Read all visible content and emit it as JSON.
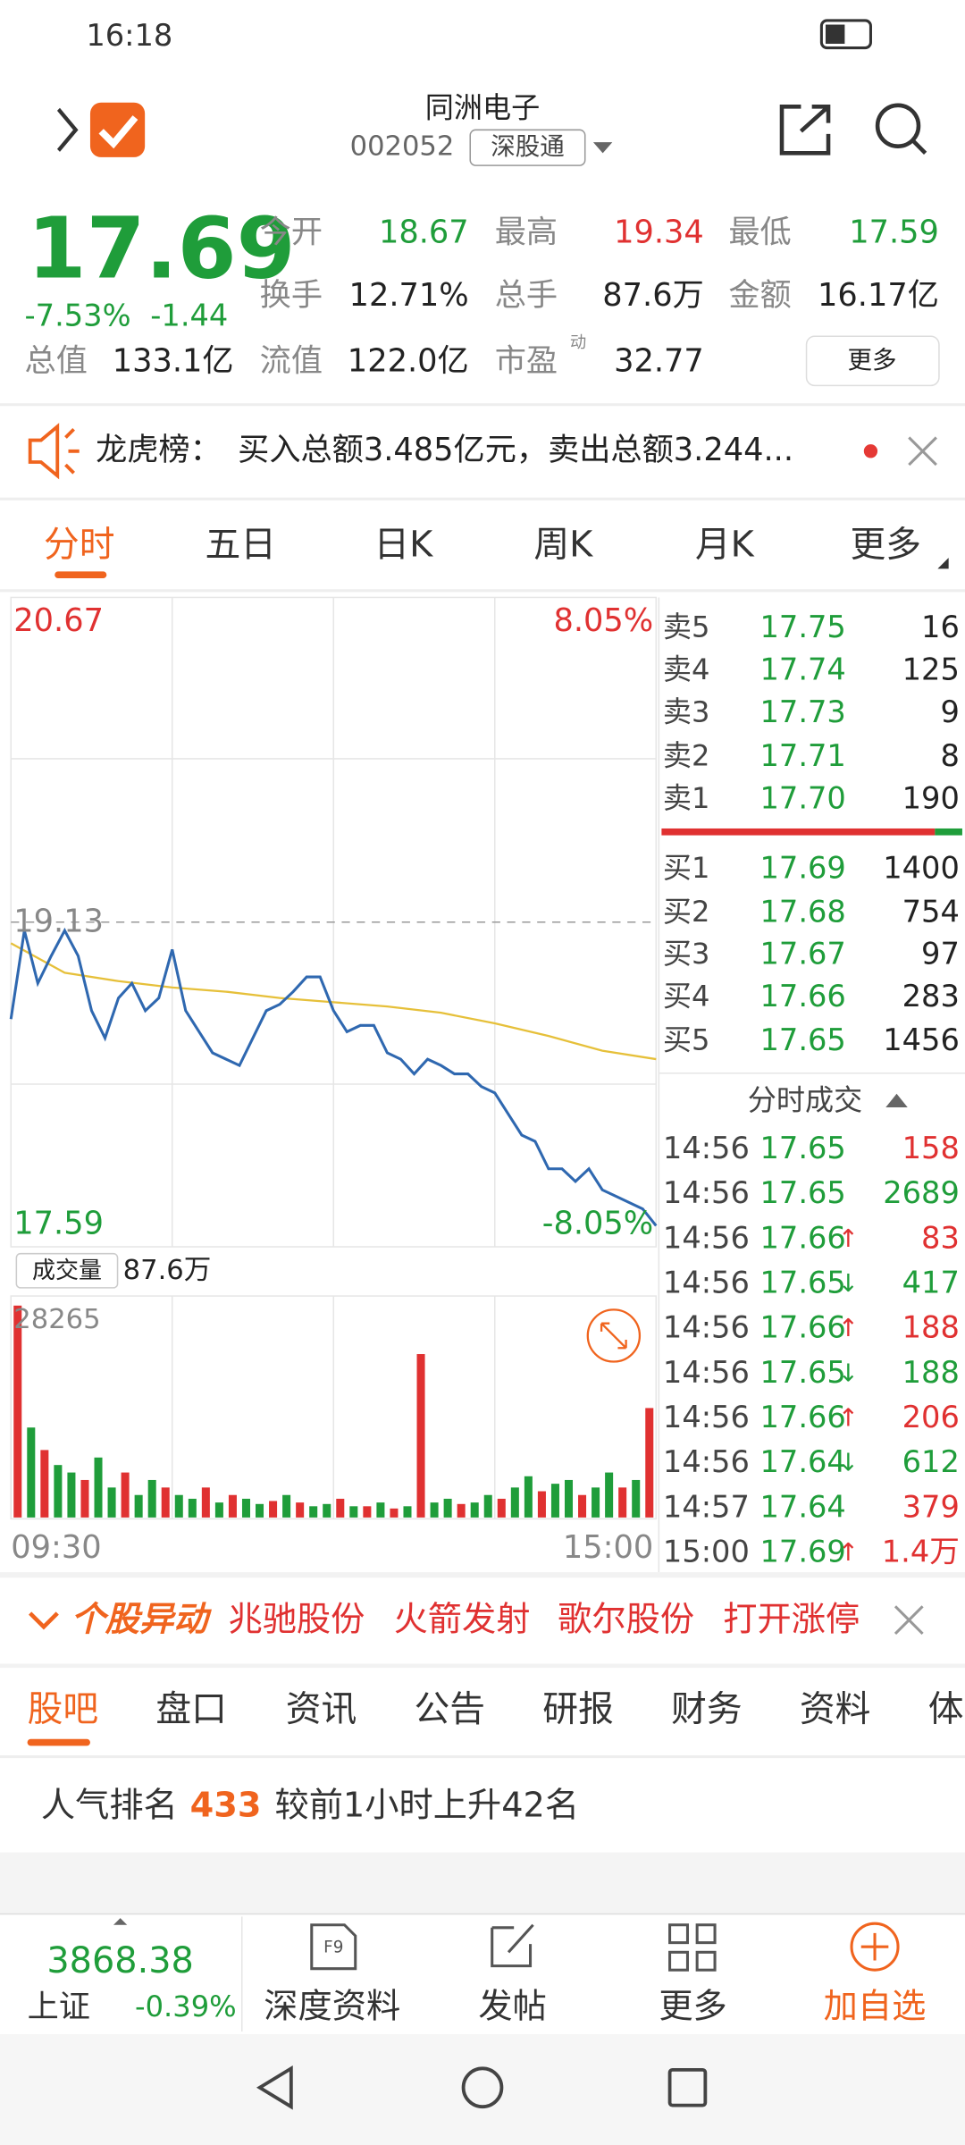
{
  "status_bar": {
    "time": "16:18"
  },
  "header": {
    "name": "同洲电子",
    "code": "002052",
    "tag": "深股通"
  },
  "quote": {
    "price": "17.69",
    "change_pct": "-7.53%",
    "change": "-1.44",
    "stats": [
      {
        "label": "今开",
        "value": "18.67"
      },
      {
        "label": "最高",
        "value": "19.34"
      },
      {
        "label": "最低",
        "value": "17.59"
      },
      {
        "label": "换手",
        "value": "12.71%"
      },
      {
        "label": "总手",
        "value": "87.6万"
      },
      {
        "label": "金额",
        "value": "16.17亿"
      },
      {
        "label": "总值",
        "value": "133.1亿"
      },
      {
        "label": "流值",
        "value": "122.0亿"
      },
      {
        "label": "市盈",
        "value": "32.77"
      }
    ],
    "pe_note": "动",
    "more": "更多"
  },
  "notice": {
    "label": "龙虎榜：",
    "text": "买入总额3.485亿元，卖出总额3.244..."
  },
  "chart_tabs": [
    "分时",
    "五日",
    "日K",
    "周K",
    "月K",
    "更多"
  ],
  "intraday": {
    "ylim": [
      17.59,
      20.67
    ],
    "reference": 19.13,
    "pct_high": "8.05%",
    "pct_low": "-8.05%",
    "price_color": "#2f68b0",
    "avg_color": "#e6c03a",
    "price": [
      18.67,
      19.09,
      18.84,
      18.97,
      19.09,
      18.97,
      18.71,
      18.58,
      18.77,
      18.84,
      18.71,
      18.77,
      19.0,
      18.71,
      18.61,
      18.51,
      18.48,
      18.45,
      18.58,
      18.71,
      18.74,
      18.8,
      18.87,
      18.87,
      18.71,
      18.61,
      18.64,
      18.64,
      18.51,
      18.48,
      18.41,
      18.48,
      18.45,
      18.41,
      18.41,
      18.35,
      18.32,
      18.22,
      18.12,
      18.09,
      17.96,
      17.96,
      17.9,
      17.96,
      17.86,
      17.83,
      17.8,
      17.77,
      17.69
    ],
    "avg": [
      19.03,
      18.89,
      18.85,
      18.82,
      18.8,
      18.77,
      18.75,
      18.73,
      18.7,
      18.65,
      18.59,
      18.52,
      18.48
    ],
    "volume_label": "成交量",
    "volume_total": "87.6万",
    "volume_ylim": [
      0,
      28265
    ],
    "volumes": [
      28265,
      12000,
      9000,
      7000,
      6000,
      5000,
      8000,
      4000,
      6000,
      3000,
      5000,
      4000,
      3000,
      2500,
      4000,
      2000,
      3000,
      2500,
      1800,
      2200,
      3000,
      2000,
      1500,
      1800,
      2500,
      1500,
      1500,
      2000,
      1200,
      1500,
      21800,
      2000,
      2500,
      1800,
      2000,
      3000,
      2500,
      4000,
      5500,
      3500,
      4500,
      5000,
      3000,
      4000,
      6000,
      4000,
      5000,
      14600
    ],
    "volume_colors": [
      "#e03131",
      "#1f9d3a",
      "#e03131",
      "#1f9d3a",
      "#1f9d3a",
      "#e03131",
      "#1f9d3a",
      "#1f9d3a",
      "#e03131",
      "#1f9d3a",
      "#1f9d3a",
      "#e03131",
      "#1f9d3a",
      "#1f9d3a",
      "#e03131",
      "#1f9d3a",
      "#e03131",
      "#1f9d3a",
      "#1f9d3a",
      "#e03131",
      "#1f9d3a",
      "#e03131",
      "#1f9d3a",
      "#1f9d3a",
      "#e03131",
      "#1f9d3a",
      "#e03131",
      "#1f9d3a",
      "#e03131",
      "#1f9d3a",
      "#e03131",
      "#1f9d3a",
      "#1f9d3a",
      "#e03131",
      "#1f9d3a",
      "#1f9d3a",
      "#e03131",
      "#1f9d3a",
      "#1f9d3a",
      "#e03131",
      "#1f9d3a",
      "#1f9d3a",
      "#e03131",
      "#1f9d3a",
      "#1f9d3a",
      "#e03131",
      "#1f9d3a",
      "#e03131"
    ],
    "time_start": "09:30",
    "time_end": "15:00"
  },
  "order_book": {
    "asks": [
      {
        "label": "卖5",
        "price": "17.75",
        "volume": "16"
      },
      {
        "label": "卖4",
        "price": "17.74",
        "volume": "125"
      },
      {
        "label": "卖3",
        "price": "17.73",
        "volume": "9"
      },
      {
        "label": "卖2",
        "price": "17.71",
        "volume": "8"
      },
      {
        "label": "卖1",
        "price": "17.70",
        "volume": "190"
      }
    ],
    "bids": [
      {
        "label": "买1",
        "price": "17.69",
        "volume": "1400"
      },
      {
        "label": "买2",
        "price": "17.68",
        "volume": "754"
      },
      {
        "label": "买3",
        "price": "17.67",
        "volume": "97"
      },
      {
        "label": "买4",
        "price": "17.66",
        "volume": "283"
      },
      {
        "label": "买5",
        "price": "17.65",
        "volume": "1456"
      }
    ]
  },
  "trades": {
    "title": "分时成交",
    "rows": [
      {
        "time": "14:56",
        "price": "17.65",
        "volume": "158",
        "color": "#e03131"
      },
      {
        "time": "14:56",
        "price": "17.65",
        "volume": "2689",
        "color": "#1f9d3a"
      },
      {
        "time": "14:56",
        "price": "17.66",
        "arrow": "↑",
        "volume": "83",
        "color": "#e03131"
      },
      {
        "time": "14:56",
        "price": "17.65",
        "arrow": "↓",
        "volume": "417",
        "color": "#1f9d3a"
      },
      {
        "time": "14:56",
        "price": "17.66",
        "arrow": "↑",
        "volume": "188",
        "color": "#e03131"
      },
      {
        "time": "14:56",
        "price": "17.65",
        "arrow": "↓",
        "volume": "188",
        "color": "#1f9d3a"
      },
      {
        "time": "14:56",
        "price": "17.66",
        "arrow": "↑",
        "volume": "206",
        "color": "#e03131"
      },
      {
        "time": "14:56",
        "price": "17.64",
        "arrow": "↓",
        "volume": "612",
        "color": "#1f9d3a"
      },
      {
        "time": "14:57",
        "price": "17.64",
        "volume": "379",
        "color": "#e03131"
      },
      {
        "time": "15:00",
        "price": "17.69",
        "arrow": "↑",
        "volume": "1.4万",
        "color": "#e03131"
      }
    ]
  },
  "alert": {
    "title": "个股异动",
    "items": [
      "兆驰股份",
      "火箭发射",
      "歌尔股份",
      "打开涨停"
    ]
  },
  "forum_tabs": [
    "股吧",
    "盘口",
    "资讯",
    "公告",
    "研报",
    "财务",
    "资料",
    "体"
  ],
  "popularity": {
    "label": "人气排名",
    "rank": "433",
    "change": "较前1小时上升42名"
  },
  "index": {
    "value": "3868.38",
    "name": "上证",
    "change": "-0.39%"
  },
  "toolbar": [
    "深度资料",
    "发帖",
    "更多",
    "加自选"
  ]
}
